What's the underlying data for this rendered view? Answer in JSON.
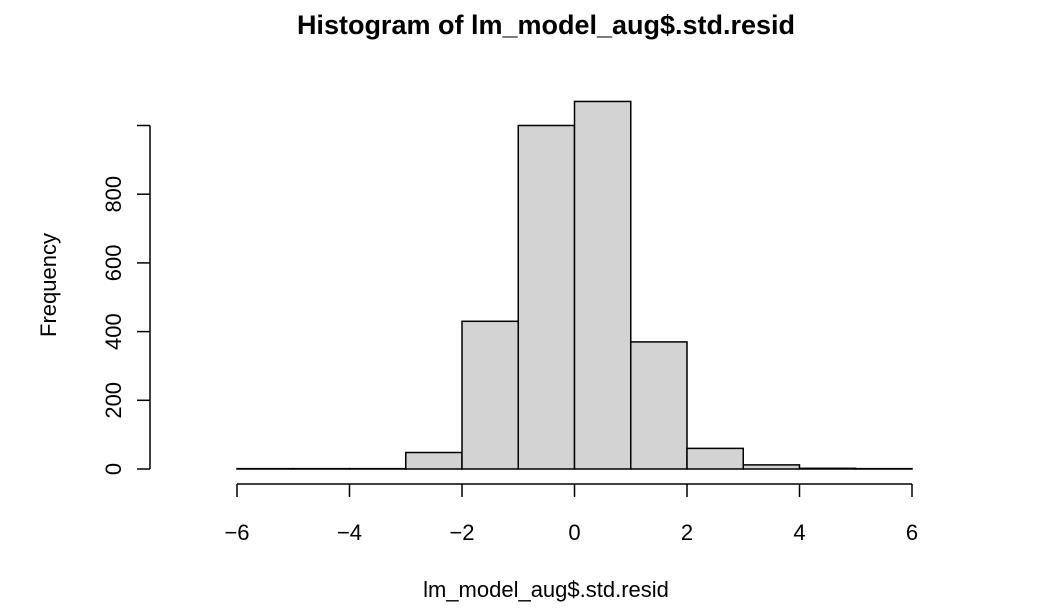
{
  "chart_data": {
    "type": "bar",
    "title": "Histogram of lm_model_aug$.std.resid",
    "xlabel": "lm_model_aug$.std.resid",
    "ylabel": "Frequency",
    "bins": [
      {
        "from": -7,
        "to": -6,
        "count": 0
      },
      {
        "from": -6,
        "to": -5,
        "count": 1
      },
      {
        "from": -5,
        "to": -4,
        "count": 1
      },
      {
        "from": -4,
        "to": -3,
        "count": 1
      },
      {
        "from": -3,
        "to": -2,
        "count": 48
      },
      {
        "from": -2,
        "to": -1,
        "count": 430
      },
      {
        "from": -1,
        "to": 0,
        "count": 1000
      },
      {
        "from": 0,
        "to": 1,
        "count": 1070
      },
      {
        "from": 1,
        "to": 2,
        "count": 370
      },
      {
        "from": 2,
        "to": 3,
        "count": 60
      },
      {
        "from": 3,
        "to": 4,
        "count": 12
      },
      {
        "from": 4,
        "to": 5,
        "count": 2
      },
      {
        "from": 5,
        "to": 6,
        "count": 1
      }
    ],
    "xticks": [
      -6,
      -4,
      -2,
      0,
      2,
      4,
      6
    ],
    "xtick_labels": [
      "−6",
      "−4",
      "−2",
      "0",
      "2",
      "4",
      "6"
    ],
    "yticks": [
      0,
      200,
      400,
      600,
      800,
      1000
    ],
    "ytick_labels": [
      "0",
      "200",
      "400",
      "600",
      "800",
      ""
    ],
    "xlim": [
      -7,
      6
    ],
    "ylim": [
      0,
      1000
    ],
    "grid": false
  }
}
